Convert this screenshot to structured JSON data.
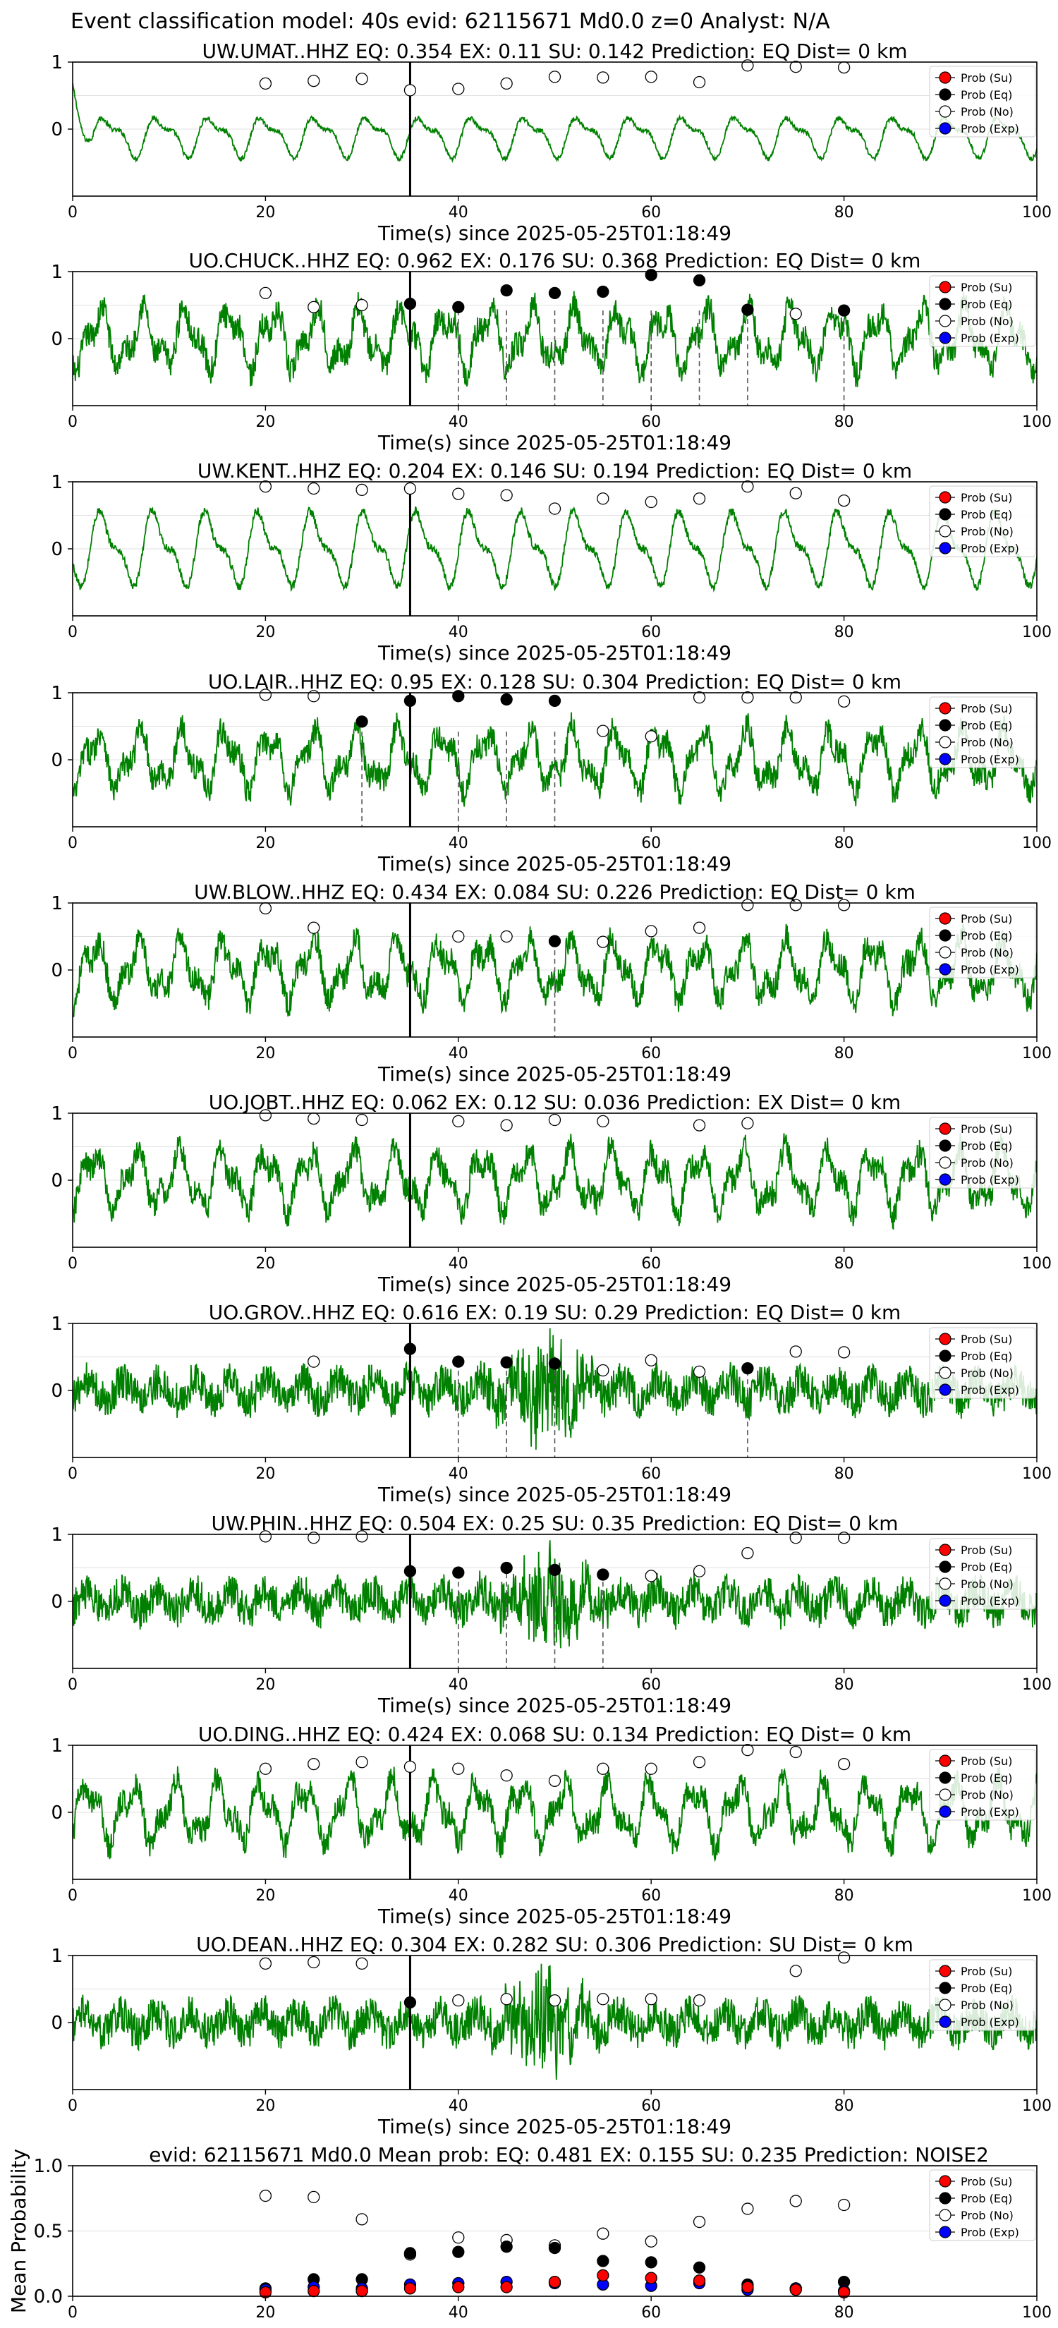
{
  "figure": {
    "suptitle": "Event classification model: 40s evid: 62115671 Md0.0 z=0 Analyst: N/A",
    "xlabel": "Time(s) since 2025-05-25T01:18:49",
    "legend": [
      "Prob (Su)",
      "Prob (Eq)",
      "Prob (No)",
      "Prob (Exp)"
    ],
    "colors": {
      "waveform": "#008000",
      "su": "#ff0000",
      "eq": "#000000",
      "no": "#ffffff",
      "exp": "#0000ff",
      "axis": "#000000",
      "grid": "#e0e0e0"
    }
  },
  "chart_data": [
    {
      "type": "line",
      "title": "UW.UMAT..HHZ   EQ: 0.354  EX: 0.11  SU: 0.142   Prediction: EQ    Dist= 0 km",
      "xlabel": "Time(s) since 2025-05-25T01:18:49",
      "xlim": [
        0,
        100
      ],
      "ylim": [
        -1,
        1
      ],
      "xticks": [
        0,
        20,
        40,
        60,
        80,
        100
      ],
      "yticks": [
        1,
        0
      ],
      "pick_time": 35,
      "eq_windows": [],
      "points": {
        "x": [
          20,
          25,
          30,
          35,
          40,
          45,
          50,
          55,
          60,
          65,
          70,
          75,
          80
        ],
        "eq": [
          null,
          null,
          null,
          null,
          null,
          null,
          null,
          null,
          null,
          null,
          null,
          null,
          null
        ],
        "no": [
          0.68,
          0.72,
          0.75,
          0.58,
          0.6,
          0.68,
          0.78,
          0.77,
          0.78,
          0.7,
          0.95,
          0.93,
          0.92
        ]
      },
      "legend": [
        "Prob (Su)",
        "Prob (Eq)",
        "Prob (No)",
        "Prob (Exp)"
      ],
      "waveform_style": "smooth"
    },
    {
      "type": "line",
      "title": "UO.CHUCK..HHZ   EQ: 0.962  EX: 0.176  SU: 0.368   Prediction: EQ    Dist= 0 km",
      "xlabel": "Time(s) since 2025-05-25T01:18:49",
      "xlim": [
        0,
        100
      ],
      "ylim": [
        -1,
        1
      ],
      "xticks": [
        0,
        20,
        40,
        60,
        80,
        100
      ],
      "yticks": [
        1,
        0
      ],
      "pick_time": 35,
      "eq_windows": [
        40,
        45,
        50,
        55,
        60,
        65,
        70,
        80
      ],
      "points": {
        "x": [
          20,
          25,
          30,
          35,
          40,
          45,
          50,
          55,
          60,
          65,
          70,
          75,
          80
        ],
        "eq": [
          null,
          null,
          null,
          0.52,
          0.47,
          0.72,
          0.68,
          0.7,
          0.95,
          0.87,
          0.43,
          null,
          0.42
        ],
        "no": [
          0.68,
          0.47,
          0.5,
          null,
          null,
          null,
          null,
          null,
          null,
          null,
          null,
          0.37,
          null
        ]
      },
      "legend": [
        "Prob (Su)",
        "Prob (Eq)",
        "Prob (No)",
        "Prob (Exp)"
      ],
      "waveform_style": "mixed"
    },
    {
      "type": "line",
      "title": "UW.KENT..HHZ   EQ: 0.204  EX: 0.146  SU: 0.194   Prediction: EQ    Dist= 0 km",
      "xlabel": "Time(s) since 2025-05-25T01:18:49",
      "xlim": [
        0,
        100
      ],
      "ylim": [
        -1,
        1
      ],
      "xticks": [
        0,
        20,
        40,
        60,
        80,
        100
      ],
      "yticks": [
        1,
        0
      ],
      "pick_time": 35,
      "eq_windows": [],
      "points": {
        "x": [
          20,
          25,
          30,
          35,
          40,
          45,
          50,
          55,
          60,
          65,
          70,
          75,
          80
        ],
        "eq": [
          null,
          null,
          null,
          null,
          null,
          null,
          null,
          null,
          null,
          null,
          null,
          null,
          null
        ],
        "no": [
          0.93,
          0.9,
          0.88,
          0.9,
          0.82,
          0.8,
          0.6,
          0.75,
          0.7,
          0.75,
          0.93,
          0.83,
          0.72
        ]
      },
      "legend": [
        "Prob (Su)",
        "Prob (Eq)",
        "Prob (No)",
        "Prob (Exp)"
      ],
      "waveform_style": "smooth"
    },
    {
      "type": "line",
      "title": "UO.LAIR..HHZ   EQ: 0.95  EX: 0.128  SU: 0.304   Prediction: EQ    Dist= 0 km",
      "xlabel": "Time(s) since 2025-05-25T01:18:49",
      "xlim": [
        0,
        100
      ],
      "ylim": [
        -1,
        1
      ],
      "xticks": [
        0,
        20,
        40,
        60,
        80,
        100
      ],
      "yticks": [
        1,
        0
      ],
      "pick_time": 35,
      "eq_windows": [
        30,
        40,
        45,
        50
      ],
      "points": {
        "x": [
          20,
          25,
          30,
          35,
          40,
          45,
          50,
          55,
          60,
          65,
          70,
          75,
          80
        ],
        "eq": [
          null,
          null,
          0.57,
          0.88,
          0.95,
          0.9,
          0.88,
          null,
          null,
          null,
          null,
          null,
          null
        ],
        "no": [
          0.97,
          0.95,
          null,
          null,
          null,
          null,
          null,
          0.43,
          0.35,
          0.93,
          0.93,
          0.93,
          0.87
        ]
      },
      "legend": [
        "Prob (Su)",
        "Prob (Eq)",
        "Prob (No)",
        "Prob (Exp)"
      ],
      "waveform_style": "mixed"
    },
    {
      "type": "line",
      "title": "UW.BLOW..HHZ   EQ: 0.434  EX: 0.084  SU: 0.226   Prediction: EQ    Dist= 0 km",
      "xlabel": "Time(s) since 2025-05-25T01:18:49",
      "xlim": [
        0,
        100
      ],
      "ylim": [
        -1,
        1
      ],
      "xticks": [
        0,
        20,
        40,
        60,
        80,
        100
      ],
      "yticks": [
        1,
        0
      ],
      "pick_time": 35,
      "eq_windows": [
        50
      ],
      "points": {
        "x": [
          20,
          25,
          30,
          35,
          40,
          45,
          50,
          55,
          60,
          65,
          70,
          75,
          80
        ],
        "eq": [
          null,
          null,
          null,
          null,
          null,
          null,
          0.43,
          null,
          null,
          null,
          null,
          null,
          null
        ],
        "no": [
          0.92,
          0.63,
          null,
          null,
          0.5,
          0.5,
          null,
          0.42,
          0.58,
          0.63,
          0.97,
          0.97,
          0.97
        ]
      },
      "legend": [
        "Prob (Su)",
        "Prob (Eq)",
        "Prob (No)",
        "Prob (Exp)"
      ],
      "waveform_style": "mixed"
    },
    {
      "type": "line",
      "title": "UO.JOBT..HHZ   EQ: 0.062  EX: 0.12  SU: 0.036   Prediction: EX    Dist= 0 km",
      "xlabel": "Time(s) since 2025-05-25T01:18:49",
      "xlim": [
        0,
        100
      ],
      "ylim": [
        -1,
        1
      ],
      "xticks": [
        0,
        20,
        40,
        60,
        80,
        100
      ],
      "yticks": [
        1,
        0
      ],
      "pick_time": 35,
      "eq_windows": [],
      "points": {
        "x": [
          20,
          25,
          30,
          35,
          40,
          45,
          50,
          55,
          60,
          65,
          70,
          75,
          80
        ],
        "eq": [
          null,
          null,
          null,
          null,
          null,
          null,
          null,
          null,
          null,
          null,
          null,
          null,
          null
        ],
        "no": [
          0.97,
          0.92,
          0.9,
          null,
          0.88,
          0.82,
          0.9,
          0.88,
          null,
          0.82,
          0.85,
          null,
          null
        ]
      },
      "legend": [
        "Prob (Su)",
        "Prob (Eq)",
        "Prob (No)",
        "Prob (Exp)"
      ],
      "waveform_style": "mixed"
    },
    {
      "type": "line",
      "title": "UO.GROV..HHZ   EQ: 0.616  EX: 0.19  SU: 0.29   Prediction: EQ    Dist= 0 km",
      "xlabel": "Time(s) since 2025-05-25T01:18:49",
      "xlim": [
        0,
        100
      ],
      "ylim": [
        -1,
        1
      ],
      "xticks": [
        0,
        20,
        40,
        60,
        80,
        100
      ],
      "yticks": [
        1,
        0
      ],
      "pick_time": 35,
      "eq_windows": [
        40,
        45,
        50,
        70
      ],
      "points": {
        "x": [
          20,
          25,
          30,
          35,
          40,
          45,
          50,
          55,
          60,
          65,
          70,
          75,
          80
        ],
        "eq": [
          null,
          null,
          null,
          0.62,
          0.43,
          0.42,
          0.4,
          null,
          null,
          null,
          0.33,
          null,
          null
        ],
        "no": [
          null,
          0.43,
          null,
          null,
          null,
          null,
          null,
          0.3,
          0.45,
          0.28,
          null,
          0.58,
          0.57
        ]
      },
      "legend": [
        "Prob (Su)",
        "Prob (Eq)",
        "Prob (No)",
        "Prob (Exp)"
      ],
      "waveform_style": "noisy_burst"
    },
    {
      "type": "line",
      "title": "UW.PHIN..HHZ   EQ: 0.504  EX: 0.25  SU: 0.35   Prediction: EQ    Dist= 0 km",
      "xlabel": "Time(s) since 2025-05-25T01:18:49",
      "xlim": [
        0,
        100
      ],
      "ylim": [
        -1,
        1
      ],
      "xticks": [
        0,
        20,
        40,
        60,
        80,
        100
      ],
      "yticks": [
        1,
        0
      ],
      "pick_time": 35,
      "eq_windows": [
        40,
        45,
        50,
        55
      ],
      "points": {
        "x": [
          20,
          25,
          30,
          35,
          40,
          45,
          50,
          55,
          60,
          65,
          70,
          75,
          80
        ],
        "eq": [
          null,
          null,
          null,
          0.45,
          0.43,
          0.5,
          0.47,
          0.4,
          null,
          null,
          null,
          null,
          null
        ],
        "no": [
          0.97,
          0.95,
          0.97,
          null,
          null,
          null,
          null,
          null,
          0.38,
          0.45,
          0.72,
          0.95,
          0.95
        ]
      },
      "legend": [
        "Prob (Su)",
        "Prob (Eq)",
        "Prob (No)",
        "Prob (Exp)"
      ],
      "waveform_style": "noisy_burst"
    },
    {
      "type": "line",
      "title": "UO.DING..HHZ   EQ: 0.424  EX: 0.068  SU: 0.134   Prediction: EQ    Dist= 0 km",
      "xlabel": "Time(s) since 2025-05-25T01:18:49",
      "xlim": [
        0,
        100
      ],
      "ylim": [
        -1,
        1
      ],
      "xticks": [
        0,
        20,
        40,
        60,
        80,
        100
      ],
      "yticks": [
        1,
        0
      ],
      "pick_time": 35,
      "eq_windows": [],
      "points": {
        "x": [
          20,
          25,
          30,
          35,
          40,
          45,
          50,
          55,
          60,
          65,
          70,
          75,
          80
        ],
        "eq": [
          null,
          null,
          null,
          null,
          null,
          null,
          null,
          null,
          null,
          null,
          null,
          null,
          null
        ],
        "no": [
          0.65,
          0.72,
          0.75,
          0.68,
          0.65,
          0.55,
          0.47,
          0.65,
          0.65,
          0.75,
          0.93,
          0.9,
          0.72
        ]
      },
      "legend": [
        "Prob (Su)",
        "Prob (Eq)",
        "Prob (No)",
        "Prob (Exp)"
      ],
      "waveform_style": "mixed"
    },
    {
      "type": "line",
      "title": "UO.DEAN..HHZ   EQ: 0.304  EX: 0.282  SU: 0.306   Prediction: SU    Dist= 0 km",
      "xlabel": "Time(s) since 2025-05-25T01:18:49",
      "xlim": [
        0,
        100
      ],
      "ylim": [
        -1,
        1
      ],
      "xticks": [
        0,
        20,
        40,
        60,
        80,
        100
      ],
      "yticks": [
        1,
        0
      ],
      "pick_time": 35,
      "eq_windows": [],
      "points": {
        "x": [
          20,
          25,
          30,
          35,
          40,
          45,
          50,
          55,
          60,
          65,
          70,
          75,
          80
        ],
        "eq": [
          null,
          null,
          null,
          0.3,
          null,
          null,
          null,
          null,
          null,
          null,
          null,
          null,
          null
        ],
        "no": [
          0.88,
          0.9,
          0.88,
          null,
          0.33,
          0.35,
          0.33,
          0.35,
          0.35,
          0.33,
          null,
          0.77,
          0.97
        ]
      },
      "legend": [
        "Prob (Su)",
        "Prob (Eq)",
        "Prob (No)",
        "Prob (Exp)"
      ],
      "waveform_style": "noisy_burst"
    },
    {
      "type": "scatter",
      "title": "evid: 62115671  Md0.0   Mean prob:   EQ: 0.481  EX: 0.155  SU: 0.235   Prediction: NOISE2",
      "ylabel": "Mean Probability",
      "xlim": [
        0,
        100
      ],
      "ylim": [
        0,
        1
      ],
      "xticks": [
        0,
        20,
        40,
        60,
        80,
        100
      ],
      "yticks": [
        0.0,
        0.5,
        1.0
      ],
      "xticklabels": [
        "0",
        "20",
        "40",
        "60",
        "80",
        "100"
      ],
      "yticklabels": [
        "0.0",
        "0.5",
        "1.0"
      ],
      "x": [
        20,
        25,
        30,
        35,
        40,
        45,
        50,
        55,
        60,
        65,
        70,
        75,
        80
      ],
      "series": [
        {
          "name": "Prob (No)",
          "values": [
            0.77,
            0.76,
            0.59,
            0.32,
            0.45,
            0.43,
            0.39,
            0.48,
            0.42,
            0.57,
            0.67,
            0.73,
            0.7
          ]
        },
        {
          "name": "Prob (Eq)",
          "values": [
            0.06,
            0.13,
            0.13,
            0.33,
            0.34,
            0.38,
            0.37,
            0.27,
            0.26,
            0.22,
            0.09,
            0.06,
            0.11
          ]
        },
        {
          "name": "Prob (Exp)",
          "values": [
            0.05,
            0.07,
            0.06,
            0.09,
            0.1,
            0.11,
            0.1,
            0.09,
            0.08,
            0.1,
            0.05,
            0.06,
            0.04
          ]
        },
        {
          "name": "Prob (Su)",
          "values": [
            0.03,
            0.04,
            0.04,
            0.06,
            0.07,
            0.07,
            0.11,
            0.16,
            0.14,
            0.12,
            0.07,
            0.05,
            0.03
          ]
        }
      ],
      "legend": [
        "Prob (Su)",
        "Prob (Eq)",
        "Prob (No)",
        "Prob (Exp)"
      ]
    }
  ]
}
